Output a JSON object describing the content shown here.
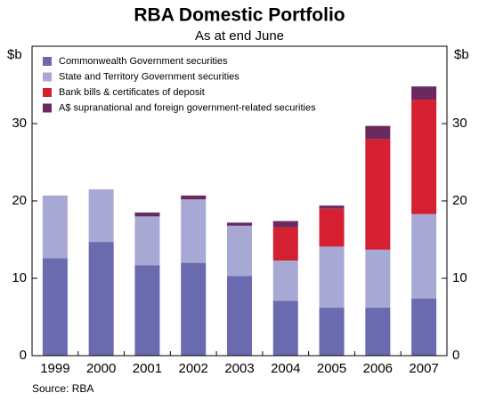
{
  "chart_data": {
    "type": "stacked_bar",
    "title": "RBA Domestic Portfolio",
    "subtitle": "As at end June",
    "ylabel": "$b",
    "y2label": "$b",
    "source": "Source: RBA",
    "categories": [
      "1999",
      "2000",
      "2001",
      "2002",
      "2003",
      "2004",
      "2005",
      "2006",
      "2007"
    ],
    "series": [
      {
        "name": "Commonwealth Government securities",
        "color": "#6a6aae",
        "values": [
          12.6,
          14.7,
          11.7,
          12.0,
          10.3,
          7.1,
          6.2,
          6.2,
          7.4
        ]
      },
      {
        "name": "State and Territory Government securities",
        "color": "#a8a8d4",
        "values": [
          8.1,
          6.8,
          6.3,
          8.2,
          6.5,
          5.2,
          7.9,
          7.5,
          10.9
        ]
      },
      {
        "name": "Bank bills & certificates of deposit",
        "color": "#d42030",
        "values": [
          0,
          0,
          0,
          0,
          0,
          4.3,
          4.9,
          14.3,
          14.8
        ]
      },
      {
        "name": "A$ supranational and foreign government-related securities",
        "color": "#6a2a60",
        "values": [
          0,
          0,
          0.5,
          0.5,
          0.4,
          0.8,
          0.4,
          1.7,
          1.7
        ]
      }
    ],
    "ylim": [
      0,
      40
    ],
    "yticks": [
      0,
      10,
      20,
      30
    ],
    "y2lim": [
      0,
      40
    ],
    "y2ticks": [
      0,
      10,
      20,
      30
    ],
    "legend": "upper left"
  }
}
